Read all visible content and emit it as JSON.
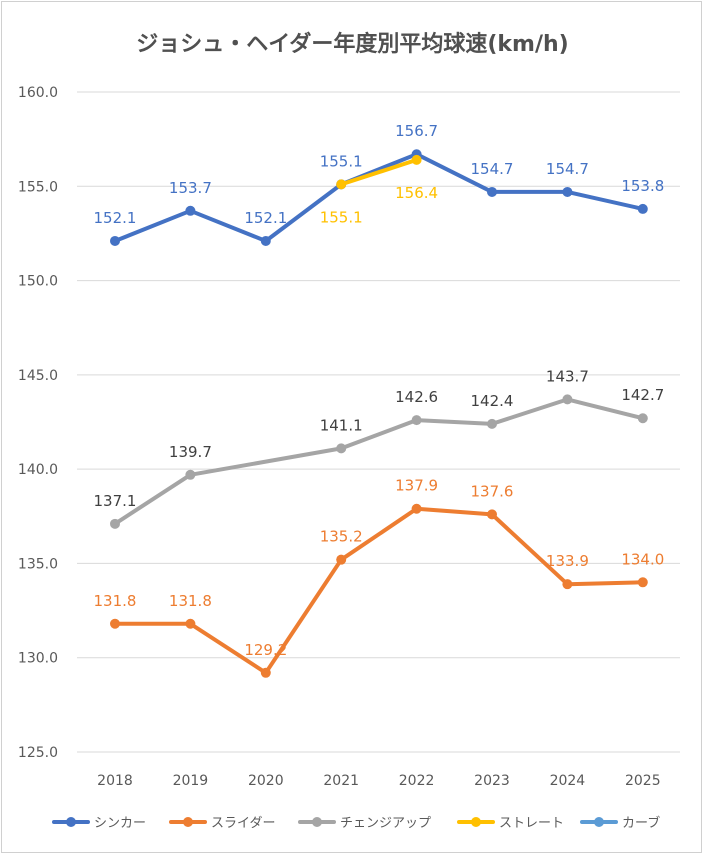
{
  "chart_data": {
    "type": "line",
    "title": "ジョシュ・ヘイダー年度別平均球速(km/h)",
    "categories": [
      "2018",
      "2019",
      "2020",
      "2021",
      "2022",
      "2023",
      "2024",
      "2025"
    ],
    "ylim": [
      125.0,
      160.0
    ],
    "y_ticks": [
      "125.0",
      "130.0",
      "135.0",
      "140.0",
      "145.0",
      "150.0",
      "155.0",
      "160.0"
    ],
    "grid": true,
    "legend_position": "bottom",
    "series": [
      {
        "name": "シンカー",
        "color": "#4472c4",
        "values": [
          152.1,
          153.7,
          152.1,
          155.1,
          156.7,
          154.7,
          154.7,
          153.8
        ],
        "labels": [
          "152.1",
          "153.7",
          "152.1",
          "155.1",
          "156.7",
          "154.7",
          "154.7",
          "153.8"
        ]
      },
      {
        "name": "スライダー",
        "color": "#ed7d31",
        "values": [
          131.8,
          131.8,
          129.2,
          135.2,
          137.9,
          137.6,
          133.9,
          134.0
        ],
        "labels": [
          "131.8",
          "131.8",
          "129.2",
          "135.2",
          "137.9",
          "137.6",
          "133.9",
          "134.0"
        ]
      },
      {
        "name": "チェンジアップ",
        "color": "#a5a5a5",
        "label_color": "#404040",
        "values": [
          137.1,
          139.7,
          null,
          141.1,
          142.6,
          142.4,
          143.7,
          142.7
        ],
        "labels": [
          "137.1",
          "139.7",
          null,
          "141.1",
          "142.6",
          "142.4",
          "143.7",
          "142.7"
        ]
      },
      {
        "name": "ストレート",
        "color": "#ffc000",
        "values": [
          null,
          null,
          null,
          155.1,
          156.4,
          null,
          null,
          null
        ],
        "labels": [
          null,
          null,
          null,
          "155.1",
          "156.4",
          null,
          null,
          null
        ]
      },
      {
        "name": "カーブ",
        "color": "#5b9bd5",
        "values": [
          null,
          null,
          null,
          null,
          null,
          null,
          null,
          null
        ],
        "labels": [
          null,
          null,
          null,
          null,
          null,
          null,
          null,
          null
        ]
      }
    ]
  }
}
